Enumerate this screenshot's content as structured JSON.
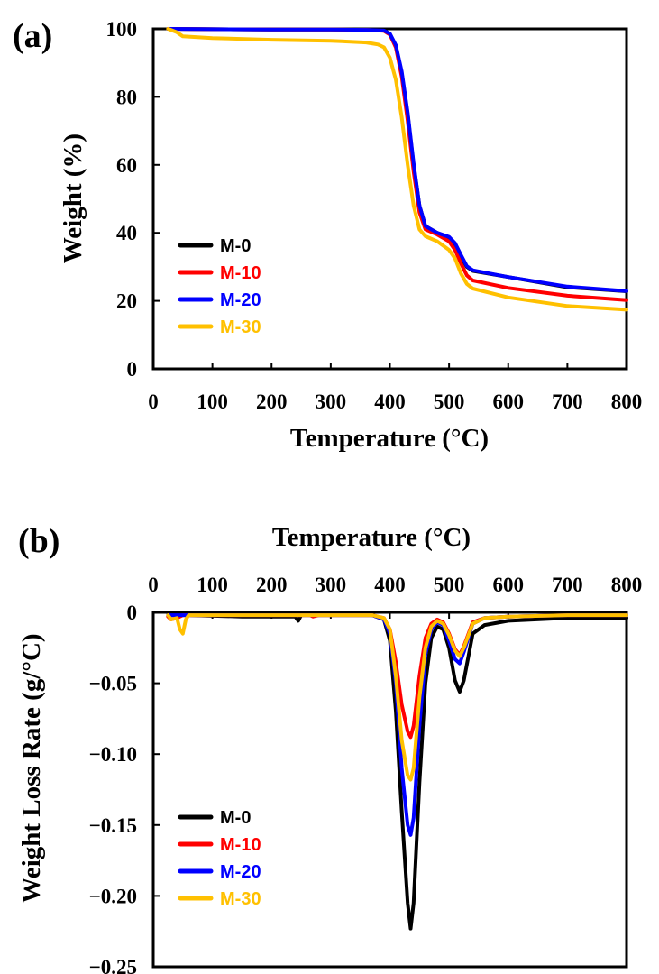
{
  "chart_data": [
    {
      "panel_label": "(a)",
      "type": "line",
      "xlabel": "Temperature (°C)",
      "ylabel": "Weight (%)",
      "xlim": [
        0,
        800
      ],
      "ylim": [
        0,
        100
      ],
      "xticks": [
        "0",
        "100",
        "200",
        "300",
        "400",
        "500",
        "600",
        "700",
        "800"
      ],
      "yticks": [
        "0",
        "20",
        "40",
        "60",
        "80",
        "100"
      ],
      "grid": false,
      "legend_position": "lower-left",
      "series": [
        {
          "name": "M-0",
          "color": "#000000",
          "x": [
            25,
            100,
            200,
            300,
            360,
            390,
            400,
            410,
            420,
            430,
            440,
            450,
            460,
            480,
            500,
            510,
            520,
            530,
            540,
            600,
            700,
            800
          ],
          "y": [
            100,
            99.9,
            99.8,
            99.8,
            99.7,
            99.5,
            98.5,
            95,
            87,
            75,
            60,
            48,
            42,
            40,
            38.5,
            36.5,
            33,
            30,
            28.8,
            27,
            24,
            22.8
          ]
        },
        {
          "name": "M-10",
          "color": "#ff0000",
          "x": [
            25,
            100,
            200,
            300,
            360,
            390,
            400,
            410,
            420,
            430,
            440,
            450,
            460,
            480,
            500,
            510,
            520,
            530,
            540,
            600,
            700,
            800
          ],
          "y": [
            100,
            99.9,
            99.8,
            99.8,
            99.7,
            99.4,
            98.3,
            94.5,
            86,
            73,
            58,
            46,
            41,
            39.5,
            37.5,
            35,
            31,
            27.5,
            26,
            23.8,
            21.5,
            20.2
          ]
        },
        {
          "name": "M-20",
          "color": "#0000ff",
          "x": [
            25,
            100,
            200,
            300,
            360,
            390,
            400,
            410,
            420,
            430,
            440,
            450,
            460,
            480,
            500,
            510,
            520,
            530,
            540,
            600,
            700,
            800
          ],
          "y": [
            100,
            99.9,
            99.8,
            99.8,
            99.7,
            99.5,
            98.6,
            95.2,
            87.5,
            75.5,
            60.5,
            48,
            42,
            40,
            38.8,
            37,
            33.5,
            30.2,
            29,
            27,
            24.2,
            22.9
          ]
        },
        {
          "name": "M-30",
          "color": "#ffc000",
          "x": [
            25,
            40,
            50,
            100,
            200,
            300,
            360,
            380,
            390,
            400,
            410,
            420,
            430,
            440,
            450,
            460,
            480,
            500,
            510,
            520,
            530,
            540,
            600,
            700,
            800
          ],
          "y": [
            100,
            99,
            97.8,
            97.3,
            96.8,
            96.5,
            96,
            95.4,
            94.6,
            91.5,
            85,
            74,
            60,
            48,
            41,
            39,
            37.5,
            35,
            32.5,
            28,
            25,
            23.6,
            21,
            18.5,
            17.4
          ]
        }
      ]
    },
    {
      "panel_label": "(b)",
      "type": "line",
      "xlabel": "Temperature (°C)",
      "ylabel": "Weight Loss Rate (g/°C)",
      "xlim": [
        0,
        800
      ],
      "ylim": [
        -0.25,
        0
      ],
      "xticks": [
        "0",
        "100",
        "200",
        "300",
        "400",
        "500",
        "600",
        "700",
        "800"
      ],
      "yticks": [
        "0",
        "−0.05",
        "−0.10",
        "−0.15",
        "−0.20",
        "−0.25"
      ],
      "x_axis_position": "top",
      "grid": false,
      "legend_position": "lower-left",
      "series": [
        {
          "name": "M-0",
          "color": "#000000",
          "x": [
            25,
            60,
            150,
            240,
            245,
            250,
            300,
            370,
            390,
            400,
            410,
            420,
            430,
            435,
            440,
            450,
            460,
            470,
            480,
            490,
            500,
            510,
            518,
            525,
            540,
            560,
            600,
            700,
            800
          ],
          "y": [
            -0.002,
            -0.002,
            -0.003,
            -0.003,
            -0.006,
            -0.002,
            -0.002,
            -0.002,
            -0.005,
            -0.02,
            -0.07,
            -0.14,
            -0.205,
            -0.223,
            -0.205,
            -0.12,
            -0.05,
            -0.018,
            -0.01,
            -0.012,
            -0.025,
            -0.048,
            -0.056,
            -0.048,
            -0.015,
            -0.009,
            -0.006,
            -0.004,
            -0.004
          ]
        },
        {
          "name": "M-10",
          "color": "#ff0000",
          "x": [
            25,
            30,
            40,
            50,
            100,
            200,
            265,
            270,
            280,
            370,
            390,
            400,
            410,
            420,
            430,
            435,
            440,
            450,
            460,
            470,
            480,
            490,
            500,
            510,
            518,
            525,
            540,
            560,
            600,
            700,
            800
          ],
          "y": [
            -0.003,
            -0.005,
            -0.004,
            -0.002,
            -0.002,
            -0.002,
            -0.002,
            -0.003,
            -0.002,
            -0.002,
            -0.004,
            -0.012,
            -0.035,
            -0.065,
            -0.084,
            -0.088,
            -0.08,
            -0.045,
            -0.018,
            -0.008,
            -0.005,
            -0.007,
            -0.015,
            -0.026,
            -0.03,
            -0.024,
            -0.007,
            -0.004,
            -0.003,
            -0.002,
            -0.002
          ]
        },
        {
          "name": "M-20",
          "color": "#0000ff",
          "x": [
            25,
            100,
            200,
            300,
            370,
            390,
            400,
            410,
            420,
            430,
            435,
            440,
            450,
            460,
            470,
            480,
            490,
            500,
            510,
            518,
            525,
            540,
            560,
            600,
            700,
            800
          ],
          "y": [
            -0.002,
            -0.002,
            -0.002,
            -0.002,
            -0.002,
            -0.005,
            -0.015,
            -0.05,
            -0.11,
            -0.15,
            -0.157,
            -0.145,
            -0.08,
            -0.03,
            -0.012,
            -0.007,
            -0.009,
            -0.02,
            -0.033,
            -0.036,
            -0.028,
            -0.008,
            -0.004,
            -0.003,
            -0.002,
            -0.002
          ]
        },
        {
          "name": "M-30",
          "color": "#ffc000",
          "x": [
            25,
            30,
            40,
            45,
            50,
            55,
            60,
            100,
            200,
            300,
            370,
            390,
            400,
            410,
            420,
            430,
            435,
            440,
            450,
            460,
            470,
            480,
            490,
            500,
            510,
            518,
            525,
            540,
            560,
            600,
            700,
            800
          ],
          "y": [
            -0.002,
            -0.005,
            -0.004,
            -0.012,
            -0.015,
            -0.005,
            -0.002,
            -0.002,
            -0.002,
            -0.002,
            -0.002,
            -0.004,
            -0.012,
            -0.045,
            -0.09,
            -0.115,
            -0.118,
            -0.11,
            -0.06,
            -0.025,
            -0.01,
            -0.006,
            -0.008,
            -0.016,
            -0.027,
            -0.031,
            -0.025,
            -0.008,
            -0.004,
            -0.003,
            -0.002,
            -0.002
          ]
        }
      ]
    }
  ]
}
